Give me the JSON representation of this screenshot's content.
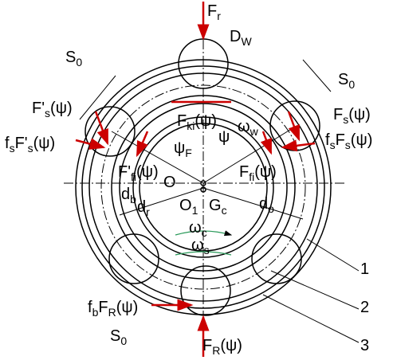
{
  "labels": [
    {
      "parts": [
        {
          "t": "F"
        },
        {
          "t": "r",
          "sub": true
        }
      ]
    },
    {
      "parts": [
        {
          "t": "D"
        },
        {
          "t": "W",
          "sub": true
        }
      ]
    },
    {
      "parts": [
        {
          "t": "S"
        },
        {
          "t": "0",
          "sub": true
        }
      ]
    },
    {
      "parts": [
        {
          "t": "S"
        },
        {
          "t": "0",
          "sub": true
        }
      ]
    },
    {
      "parts": [
        {
          "t": "F'"
        },
        {
          "t": "s",
          "sub": true
        },
        {
          "t": "(ψ)"
        }
      ]
    },
    {
      "parts": [
        {
          "t": "f"
        },
        {
          "t": "s",
          "sub": true
        },
        {
          "t": "F'"
        },
        {
          "t": "s",
          "sub": true
        },
        {
          "t": "(ψ)"
        }
      ]
    },
    {
      "parts": [
        {
          "t": "F"
        },
        {
          "t": "s",
          "sub": true
        },
        {
          "t": "(ψ)"
        }
      ]
    },
    {
      "parts": [
        {
          "t": "f"
        },
        {
          "t": "s",
          "sub": true
        },
        {
          "t": "F"
        },
        {
          "t": "s",
          "sub": true
        },
        {
          "t": "(ψ)"
        }
      ]
    },
    {
      "parts": [
        {
          "t": "F"
        },
        {
          "t": "ki",
          "sub": true
        },
        {
          "t": "(ψ)"
        }
      ]
    },
    {
      "parts": [
        {
          "t": "ω"
        },
        {
          "t": "w",
          "sub": true
        }
      ]
    },
    {
      "parts": [
        {
          "t": "ψ"
        }
      ]
    },
    {
      "parts": [
        {
          "t": "ψ"
        },
        {
          "t": "F",
          "sub": true
        }
      ]
    },
    {
      "parts": [
        {
          "t": "F'"
        },
        {
          "t": "fi",
          "sub": true
        },
        {
          "t": "(ψ)"
        }
      ]
    },
    {
      "parts": [
        {
          "t": "F"
        },
        {
          "t": "fi",
          "sub": true
        },
        {
          "t": "(ψ)"
        }
      ]
    },
    {
      "parts": [
        {
          "t": "O"
        }
      ]
    },
    {
      "parts": [
        {
          "t": "d"
        },
        {
          "t": "b",
          "sub": true
        }
      ]
    },
    {
      "parts": [
        {
          "t": "d"
        },
        {
          "t": "r",
          "sub": true
        }
      ]
    },
    {
      "parts": [
        {
          "t": "O"
        },
        {
          "t": "1",
          "sub": true
        }
      ]
    },
    {
      "parts": [
        {
          "t": "G"
        },
        {
          "t": "c",
          "sub": true
        }
      ]
    },
    {
      "parts": [
        {
          "t": "d"
        },
        {
          "t": "o",
          "sub": true
        }
      ]
    },
    {
      "parts": [
        {
          "t": "ω"
        },
        {
          "t": "c",
          "sub": true
        }
      ]
    },
    {
      "parts": [
        {
          "t": "ω"
        },
        {
          "t": "s",
          "sub": true
        }
      ]
    },
    {
      "parts": [
        {
          "t": "1"
        }
      ]
    },
    {
      "parts": [
        {
          "t": "2"
        }
      ]
    },
    {
      "parts": [
        {
          "t": "3"
        }
      ]
    },
    {
      "parts": [
        {
          "t": "f"
        },
        {
          "t": "b",
          "sub": true
        },
        {
          "t": "F"
        },
        {
          "t": "R",
          "sub": true
        },
        {
          "t": "(ψ)"
        }
      ]
    },
    {
      "parts": [
        {
          "t": "S"
        },
        {
          "t": "0",
          "sub": true
        }
      ]
    },
    {
      "parts": [
        {
          "t": "F"
        },
        {
          "t": "R",
          "sub": true
        },
        {
          "t": "(ψ)"
        }
      ]
    }
  ]
}
